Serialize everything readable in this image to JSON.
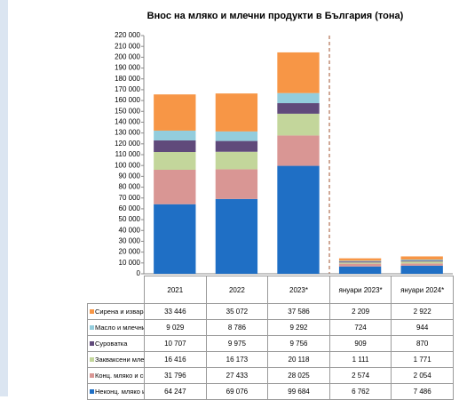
{
  "chart_data": {
    "type": "stacked_bar",
    "title": "Внос на мляко и млечни продукти в България (тона)",
    "categories": [
      "2021",
      "2022",
      "2023*",
      "януари 2023*",
      "януари 2024*"
    ],
    "series": [
      {
        "name": "Неконц. мляко и сметана",
        "color": "#1f6fc5",
        "values": [
          64247,
          69076,
          99684,
          6762,
          7486
        ],
        "value_labels": [
          "64 247",
          "69 076",
          "99 684",
          "6 762",
          "7 486"
        ]
      },
      {
        "name": "Конц. мляко и сметана",
        "color": "#d99694",
        "values": [
          31796,
          27433,
          28025,
          2574,
          2054
        ],
        "value_labels": [
          "31 796",
          "27 433",
          "28 025",
          "2 574",
          "2 054"
        ]
      },
      {
        "name": "Закваксени млека и сметана",
        "color": "#c3d69b",
        "values": [
          16416,
          16173,
          20118,
          1111,
          1771
        ],
        "value_labels": [
          "16 416",
          "16 173",
          "20 118",
          "1 111",
          "1 771"
        ]
      },
      {
        "name": "Суроватка",
        "color": "#604a7b",
        "values": [
          10707,
          9975,
          9756,
          909,
          870
        ],
        "value_labels": [
          "10 707",
          "9 975",
          "9 756",
          "909",
          "870"
        ]
      },
      {
        "name": "Масло и млечни мазнини",
        "color": "#93cddd",
        "values": [
          9029,
          8786,
          9292,
          724,
          944
        ],
        "value_labels": [
          "9 029",
          "8 786",
          "9 292",
          "724",
          "944"
        ]
      },
      {
        "name": "Сирена и извара",
        "color": "#f79646",
        "values": [
          33446,
          35072,
          37586,
          2209,
          2922
        ],
        "value_labels": [
          "33 446",
          "35 072",
          "37 586",
          "2 209",
          "2 922"
        ]
      }
    ],
    "ylim": [
      0,
      220000
    ],
    "yticks": [
      0,
      {
        "value": 10000,
        "label": "10 000"
      },
      {
        "value": 20000,
        "label": "20 000"
      },
      {
        "value": 30000,
        "label": "30 000"
      },
      {
        "value": 40000,
        "label": "40 000"
      },
      {
        "value": 50000,
        "label": "50 000"
      },
      {
        "value": 60000,
        "label": "60 000"
      },
      {
        "value": 70000,
        "label": "70 000"
      },
      {
        "value": 80000,
        "label": "80 000"
      },
      {
        "value": 90000,
        "label": "90 000"
      },
      {
        "value": 100000,
        "label": "100 000"
      },
      {
        "value": 110000,
        "label": "110 000"
      },
      {
        "value": 120000,
        "label": "120 000"
      },
      {
        "value": 130000,
        "label": "130 000"
      },
      {
        "value": 140000,
        "label": "140 000"
      },
      {
        "value": 150000,
        "label": "150 000"
      },
      {
        "value": 160000,
        "label": "160 000"
      },
      {
        "value": 170000,
        "label": "170 000"
      },
      {
        "value": 180000,
        "label": "180 000"
      },
      {
        "value": 190000,
        "label": "190 000"
      },
      {
        "value": 200000,
        "label": "200 000"
      },
      {
        "value": 210000,
        "label": "210 000"
      },
      {
        "value": 220000,
        "label": "220 000"
      }
    ]
  }
}
